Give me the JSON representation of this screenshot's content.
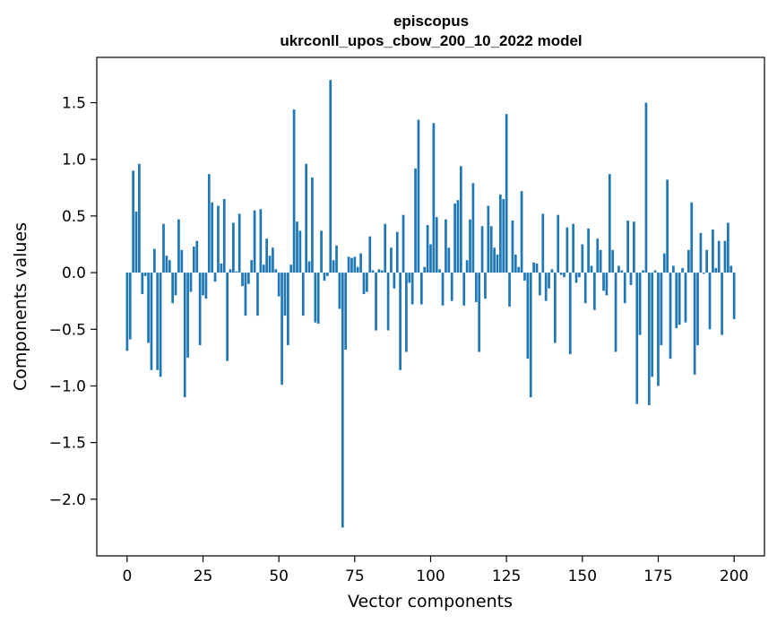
{
  "chart_data": {
    "type": "bar",
    "title": "episcopus",
    "subtitle": "ukrconll_upos_cbow_200_10_2022 model",
    "xlabel": "Vector components",
    "ylabel": "Components values",
    "xlim": [
      -10,
      210
    ],
    "ylim": [
      -2.5,
      1.9
    ],
    "xticks": [
      0,
      25,
      50,
      75,
      100,
      125,
      150,
      175,
      200
    ],
    "yticks": [
      -2.0,
      -1.5,
      -1.0,
      -0.5,
      0.0,
      0.5,
      1.0,
      1.5
    ],
    "ytick_labels": [
      "−2.0",
      "−1.5",
      "−1.0",
      "−0.5",
      "0.0",
      "0.5",
      "1.0",
      "1.5"
    ],
    "grid": false,
    "color": "#1f77b4",
    "values": [
      -0.69,
      -0.59,
      0.9,
      0.54,
      0.96,
      -0.19,
      -0.03,
      -0.62,
      -0.86,
      0.21,
      -0.86,
      -0.92,
      0.43,
      0.15,
      0.11,
      -0.27,
      -0.2,
      0.47,
      0.2,
      -1.1,
      -0.75,
      -0.17,
      0.23,
      0.28,
      -0.64,
      -0.2,
      -0.23,
      0.87,
      0.62,
      -0.08,
      0.59,
      0.08,
      0.65,
      -0.78,
      0.03,
      0.44,
      0.01,
      0.52,
      -0.12,
      -0.38,
      -0.1,
      0.11,
      0.55,
      -0.38,
      0.56,
      0.07,
      0.3,
      0.15,
      0.22,
      0.03,
      -0.21,
      -0.99,
      -0.38,
      -0.64,
      0.07,
      1.44,
      0.45,
      0.37,
      -0.38,
      0.96,
      0.1,
      0.84,
      -0.44,
      -0.45,
      0.37,
      -0.07,
      -0.03,
      1.7,
      0.11,
      0.24,
      -0.32,
      -2.25,
      -0.68,
      0.14,
      0.13,
      0.14,
      0.05,
      0.17,
      -0.19,
      -0.17,
      0.32,
      0.02,
      -0.51,
      0.03,
      0.02,
      0.43,
      -0.51,
      0.22,
      -0.14,
      0.36,
      -0.86,
      0.51,
      -0.7,
      -0.09,
      -0.28,
      0.92,
      1.35,
      -0.28,
      0.05,
      0.42,
      0.25,
      1.32,
      0.49,
      0.03,
      -0.29,
      0.47,
      0.22,
      -0.25,
      0.61,
      0.64,
      0.94,
      -0.29,
      0.11,
      0.47,
      0.79,
      -0.26,
      -0.7,
      0.41,
      -0.23,
      0.59,
      0.41,
      0.22,
      0.16,
      0.69,
      0.65,
      1.4,
      -0.3,
      0.46,
      0.16,
      0.05,
      0.72,
      -0.07,
      -0.76,
      -1.1,
      0.09,
      0.08,
      -0.2,
      0.52,
      -0.25,
      -0.14,
      0.03,
      -0.62,
      0.51,
      -0.02,
      -0.04,
      0.4,
      -0.72,
      0.43,
      -0.09,
      -0.04,
      0.25,
      -0.27,
      0.39,
      0.06,
      -0.33,
      0.3,
      0.2,
      -0.16,
      -0.2,
      0.87,
      0.2,
      -0.7,
      0.06,
      0.02,
      -0.27,
      0.46,
      -0.11,
      0.45,
      -1.16,
      -0.55,
      0.02,
      1.5,
      -1.17,
      -0.92,
      0.02,
      -1.0,
      -0.64,
      0.17,
      0.82,
      -0.76,
      0.06,
      -0.49,
      -0.46,
      0.04,
      -0.44,
      0.2,
      0.62,
      -0.9,
      -0.64,
      0.35,
      -0.01,
      0.2,
      -0.5,
      0.38,
      0.04,
      0.28,
      -0.55,
      0.28,
      0.44,
      0.06,
      -0.41
    ]
  }
}
